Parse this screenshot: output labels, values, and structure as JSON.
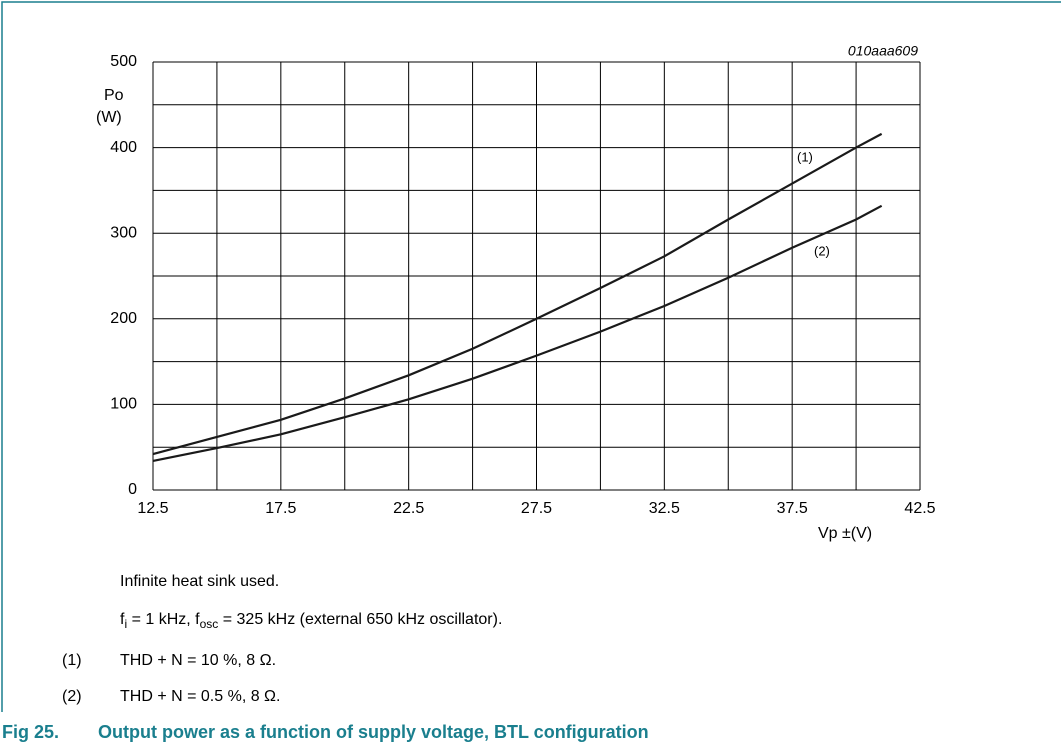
{
  "chart_data": {
    "type": "line",
    "annotation": "010aaa609",
    "ylabel": [
      "Po",
      "(W)"
    ],
    "xlabel": "Vp ±(V)",
    "xlim": [
      12.5,
      42.5
    ],
    "ylim": [
      0,
      500
    ],
    "xticks": [
      12.5,
      17.5,
      22.5,
      27.5,
      32.5,
      37.5,
      42.5
    ],
    "yticks": [
      0,
      100,
      200,
      300,
      400,
      500
    ],
    "xminor": [
      15,
      20,
      25,
      30,
      35,
      40
    ],
    "yminor": [
      50,
      150,
      250,
      350,
      450
    ],
    "grid": true,
    "series": [
      {
        "name": "(1)",
        "color": "#1a1a1a",
        "x": [
          12.5,
          15,
          17.5,
          20,
          22.5,
          25,
          27.5,
          30,
          32.5,
          35,
          37.5,
          40,
          41
        ],
        "values": [
          42,
          62,
          82,
          107,
          134,
          165,
          200,
          236,
          273,
          316,
          358,
          400,
          416
        ]
      },
      {
        "name": "(2)",
        "color": "#1a1a1a",
        "x": [
          12.5,
          15,
          17.5,
          20,
          22.5,
          25,
          27.5,
          30,
          32.5,
          35,
          37.5,
          40,
          41
        ],
        "values": [
          34,
          49,
          65,
          85,
          106,
          130,
          157,
          185,
          215,
          248,
          283,
          316,
          332
        ]
      }
    ]
  },
  "notes": {
    "line1": "Infinite heat sink used.",
    "line2": [
      "f",
      "i",
      " = 1 kHz, f",
      "osc",
      " = 325 kHz (external 650 kHz oscillator)."
    ],
    "items": [
      {
        "num": "(1)",
        "text": "THD + N = 10 %, 8 Ω."
      },
      {
        "num": "(2)",
        "text": "THD + N = 0.5 %, 8 Ω."
      }
    ]
  },
  "caption": {
    "label": "Fig 25.",
    "text": "Output power as a function of supply voltage, BTL configuration"
  }
}
